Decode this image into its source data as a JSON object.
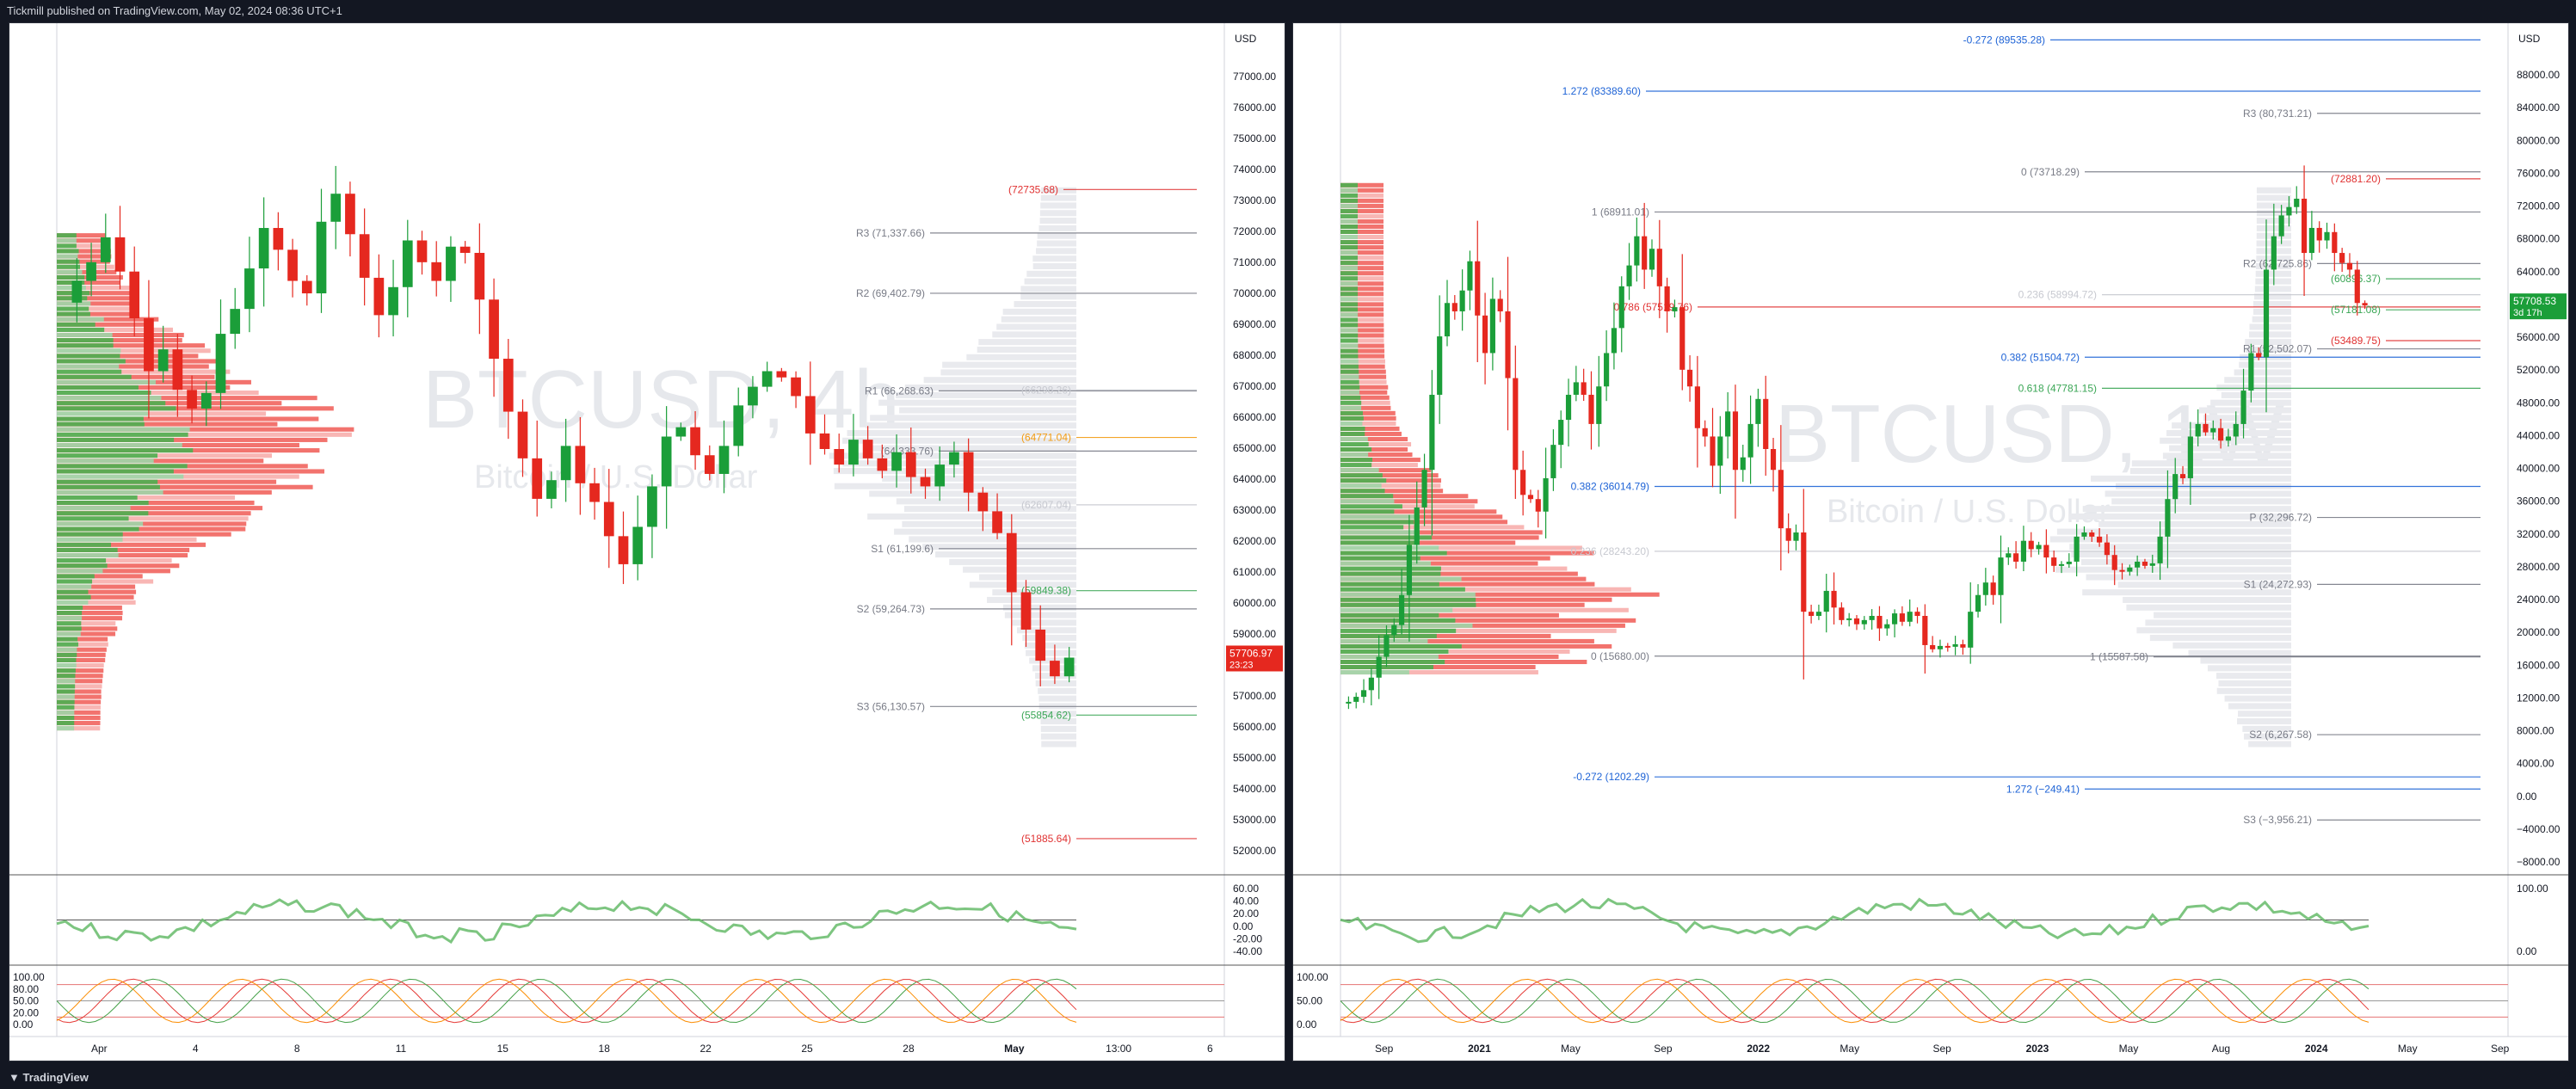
{
  "header": {
    "published": "Tickmill published on TradingView.com, May 02, 2024 08:36 UTC+1"
  },
  "footer": {
    "brand": "TradingView"
  },
  "colors": {
    "bull": "#26a69a",
    "bear": "#ef5350",
    "candle_up": "#1b9e39",
    "candle_down": "#e5281f",
    "gold": "#f39c12",
    "blue": "#1e63d6",
    "green_line": "#3aa655",
    "red_line": "#e03131",
    "gray": "#787b86"
  },
  "chart_data": [
    {
      "type": "candlestick",
      "watermark_symbol": "BTCUSD, 4h",
      "watermark_name": "Bitcoin / U.S. Dollar",
      "currency": "USD",
      "y_ticks": [
        "77000.00",
        "76000.00",
        "75000.00",
        "74000.00",
        "73000.00",
        "72000.00",
        "71000.00",
        "70000.00",
        "69000.00",
        "68000.00",
        "67000.00",
        "66000.00",
        "65000.00",
        "64000.00",
        "63000.00",
        "62000.00",
        "61000.00",
        "60000.00",
        "59000.00",
        "58000.00",
        "57000.00",
        "56000.00",
        "55000.00",
        "54000.00",
        "53000.00",
        "52000.00"
      ],
      "y_range": [
        51000,
        77800
      ],
      "x_ticks": [
        "Apr",
        "4",
        "8",
        "11",
        "15",
        "18",
        "22",
        "25",
        "28",
        "May",
        "13:00",
        "6"
      ],
      "price_label": "57706.97",
      "countdown": "23:23",
      "levels": [
        {
          "label": "(72735.68)",
          "value": 72735.68,
          "color": "#e03131"
        },
        {
          "label": "R3 (71,337.66)",
          "value": 71337.66,
          "color": "#787b86"
        },
        {
          "label": "R2 (69,402.79)",
          "value": 69402.79,
          "color": "#787b86"
        },
        {
          "label": "R1 (66,268.63)",
          "value": 66268.63,
          "color": "#787b86"
        },
        {
          "label": "(66298.26)",
          "value": 66298.26,
          "color": "#c7c9d0"
        },
        {
          "label": "(64771.04)",
          "value": 64771.04,
          "color": "#f39c12"
        },
        {
          "label": "(64,333.76)",
          "value": 64333.76,
          "color": "#787b86"
        },
        {
          "label": "(62607.04)",
          "value": 62607.04,
          "color": "#c7c9d0"
        },
        {
          "label": "S1 (61,199.6)",
          "value": 61199.6,
          "color": "#787b86"
        },
        {
          "label": "(59849.38)",
          "value": 59849.38,
          "color": "#3aa655"
        },
        {
          "label": "S2 (59,264.73)",
          "value": 59264.73,
          "color": "#787b86"
        },
        {
          "label": "S3 (56,130.57)",
          "value": 56130.57,
          "color": "#787b86"
        },
        {
          "label": "(55854.62)",
          "value": 55854.62,
          "color": "#3aa655"
        },
        {
          "label": "(51885.64)",
          "value": 51885.64,
          "color": "#e03131"
        }
      ],
      "osc1_ticks": [
        "60.00",
        "40.00",
        "20.00",
        "0.00",
        "-20.00",
        "-40.00"
      ],
      "osc2_ticks": [
        "100.00",
        "80.00",
        "50.00",
        "20.00",
        "0.00"
      ],
      "close_series": [
        69800,
        70400,
        71200,
        70100,
        68600,
        66900,
        67600,
        66300,
        65700,
        66200,
        68100,
        68900,
        70200,
        71500,
        70800,
        69800,
        69400,
        71700,
        72600,
        71300,
        69900,
        68700,
        69600,
        71100,
        70400,
        69800,
        70900,
        70700,
        69200,
        67300,
        65600,
        64100,
        62800,
        63400,
        64500,
        63300,
        62700,
        61600,
        60700,
        61900,
        63200,
        64800,
        65100,
        64200,
        63600,
        64500,
        65800,
        66400,
        66900,
        66700,
        66100,
        64900,
        64400,
        63900,
        64700,
        64100,
        63700,
        64300,
        63500,
        63200,
        63900,
        64300,
        63000,
        62400,
        61700,
        59800,
        58600,
        57600,
        57100,
        57700
      ]
    },
    {
      "type": "candlestick",
      "watermark_symbol": "BTCUSD, 1W",
      "watermark_name": "Bitcoin / U.S. Dollar",
      "currency": "USD",
      "y_ticks": [
        "88000.00",
        "84000.00",
        "80000.00",
        "76000.00",
        "72000.00",
        "68000.00",
        "64000.00",
        "60000.00",
        "56000.00",
        "52000.00",
        "48000.00",
        "44000.00",
        "40000.00",
        "36000.00",
        "32000.00",
        "28000.00",
        "24000.00",
        "20000.00",
        "16000.00",
        "12000.00",
        "8000.00",
        "4000.00",
        "0.00",
        "−4000.00",
        "−8000.00"
      ],
      "y_range": [
        -9500,
        90500
      ],
      "x_ticks": [
        "Sep",
        "2021",
        "May",
        "Sep",
        "2022",
        "May",
        "Sep",
        "2023",
        "May",
        "Aug",
        "2024",
        "May",
        "Sep"
      ],
      "price_label": "57708.53",
      "countdown": "3d 17h",
      "levels": [
        {
          "label": "-0.272 (89535.28)",
          "value": 89535.28,
          "color": "#1e63d6"
        },
        {
          "label": "1.272 (83389.60)",
          "value": 83389.6,
          "color": "#1e63d6"
        },
        {
          "label": "R3 (80,731.21)",
          "value": 80731.21,
          "color": "#787b86"
        },
        {
          "label": "0 (73718.29)",
          "value": 73718.29,
          "color": "#787b86"
        },
        {
          "label": "(72881.20)",
          "value": 72881.2,
          "color": "#e03131"
        },
        {
          "label": "1 (68911.01)",
          "value": 68911.01,
          "color": "#787b86"
        },
        {
          "label": "R2 (62,725.86)",
          "value": 62725.86,
          "color": "#787b86"
        },
        {
          "label": "(60896.37)",
          "value": 60896.37,
          "color": "#3aa655"
        },
        {
          "label": "0.236 (58994.72)",
          "value": 58994.72,
          "color": "#c7c9d0"
        },
        {
          "label": "0.786 (57519.76)",
          "value": 57519.76,
          "color": "#e03131"
        },
        {
          "label": "(57181.08)",
          "value": 57181.08,
          "color": "#3aa655"
        },
        {
          "label": "(53489.75)",
          "value": 53489.75,
          "color": "#e03131"
        },
        {
          "label": "R1 (52,502.07)",
          "value": 52502.07,
          "color": "#787b86"
        },
        {
          "label": "0.382 (51504.72)",
          "value": 51504.72,
          "color": "#1e63d6"
        },
        {
          "label": "0.618 (47781.15)",
          "value": 47781.15,
          "color": "#3aa655"
        },
        {
          "label": "0.382 (36014.79)",
          "value": 36014.79,
          "color": "#1e63d6"
        },
        {
          "label": "P (32,296.72)",
          "value": 32296.72,
          "color": "#787b86"
        },
        {
          "label": "0.236 (28243.20)",
          "value": 28243.2,
          "color": "#c7c9d0"
        },
        {
          "label": "S1 (24,272.93)",
          "value": 24272.93,
          "color": "#787b86"
        },
        {
          "label": "0 (15680.00)",
          "value": 15680.0,
          "color": "#787b86"
        },
        {
          "label": "1 (15587.58)",
          "value": 15587.58,
          "color": "#787b86"
        },
        {
          "label": "S2 (6,267.58)",
          "value": 6267.58,
          "color": "#787b86"
        },
        {
          "label": "-0.272 (1202.29)",
          "value": 1202.29,
          "color": "#1e63d6"
        },
        {
          "label": "1.272 (−249.41)",
          "value": -249.41,
          "color": "#1e63d6"
        },
        {
          "label": "S3 (−3,956.21)",
          "value": -3956.21,
          "color": "#787b86"
        }
      ],
      "osc1_ticks": [
        "100.00",
        "0.00"
      ],
      "osc2_ticks": [
        "100.00",
        "50.00",
        "0.00"
      ],
      "close_series": [
        10200,
        10800,
        11600,
        13100,
        15600,
        18200,
        19400,
        23000,
        29000,
        33500,
        38000,
        47000,
        54000,
        58000,
        57000,
        59500,
        63000,
        56500,
        52000,
        58500,
        57000,
        49000,
        38000,
        35000,
        34500,
        33000,
        37000,
        41000,
        44000,
        47000,
        48500,
        47000,
        43500,
        48000,
        52000,
        55000,
        60000,
        62500,
        66000,
        62000,
        64500,
        60000,
        57000,
        57500,
        50000,
        48000,
        43000,
        42000,
        38500,
        42000,
        45000,
        38000,
        39500,
        43500,
        46500,
        40500,
        38000,
        31000,
        29500,
        30500,
        21000,
        20500,
        21000,
        23500,
        21500,
        20000,
        20200,
        19500,
        20000,
        20500,
        19000,
        19500,
        20800,
        19800,
        21000,
        20500,
        17000,
        16500,
        16900,
        16800,
        17100,
        16700,
        21000,
        23000,
        24500,
        23000,
        27500,
        28000,
        27000,
        29500,
        28500,
        29000,
        27500,
        26500,
        26700,
        27000,
        30000,
        30500,
        30000,
        29300,
        27800,
        26000,
        25800,
        26300,
        27000,
        26500,
        26800,
        30000,
        34500,
        37500,
        37000,
        42000,
        43500,
        42500,
        43000,
        41500,
        42000,
        43500,
        47500,
        52000,
        51500,
        62000,
        66000,
        68500,
        69500,
        70500,
        64000,
        67000,
        65500,
        66500,
        64000,
        62800,
        62000,
        58000,
        57700
      ]
    }
  ]
}
